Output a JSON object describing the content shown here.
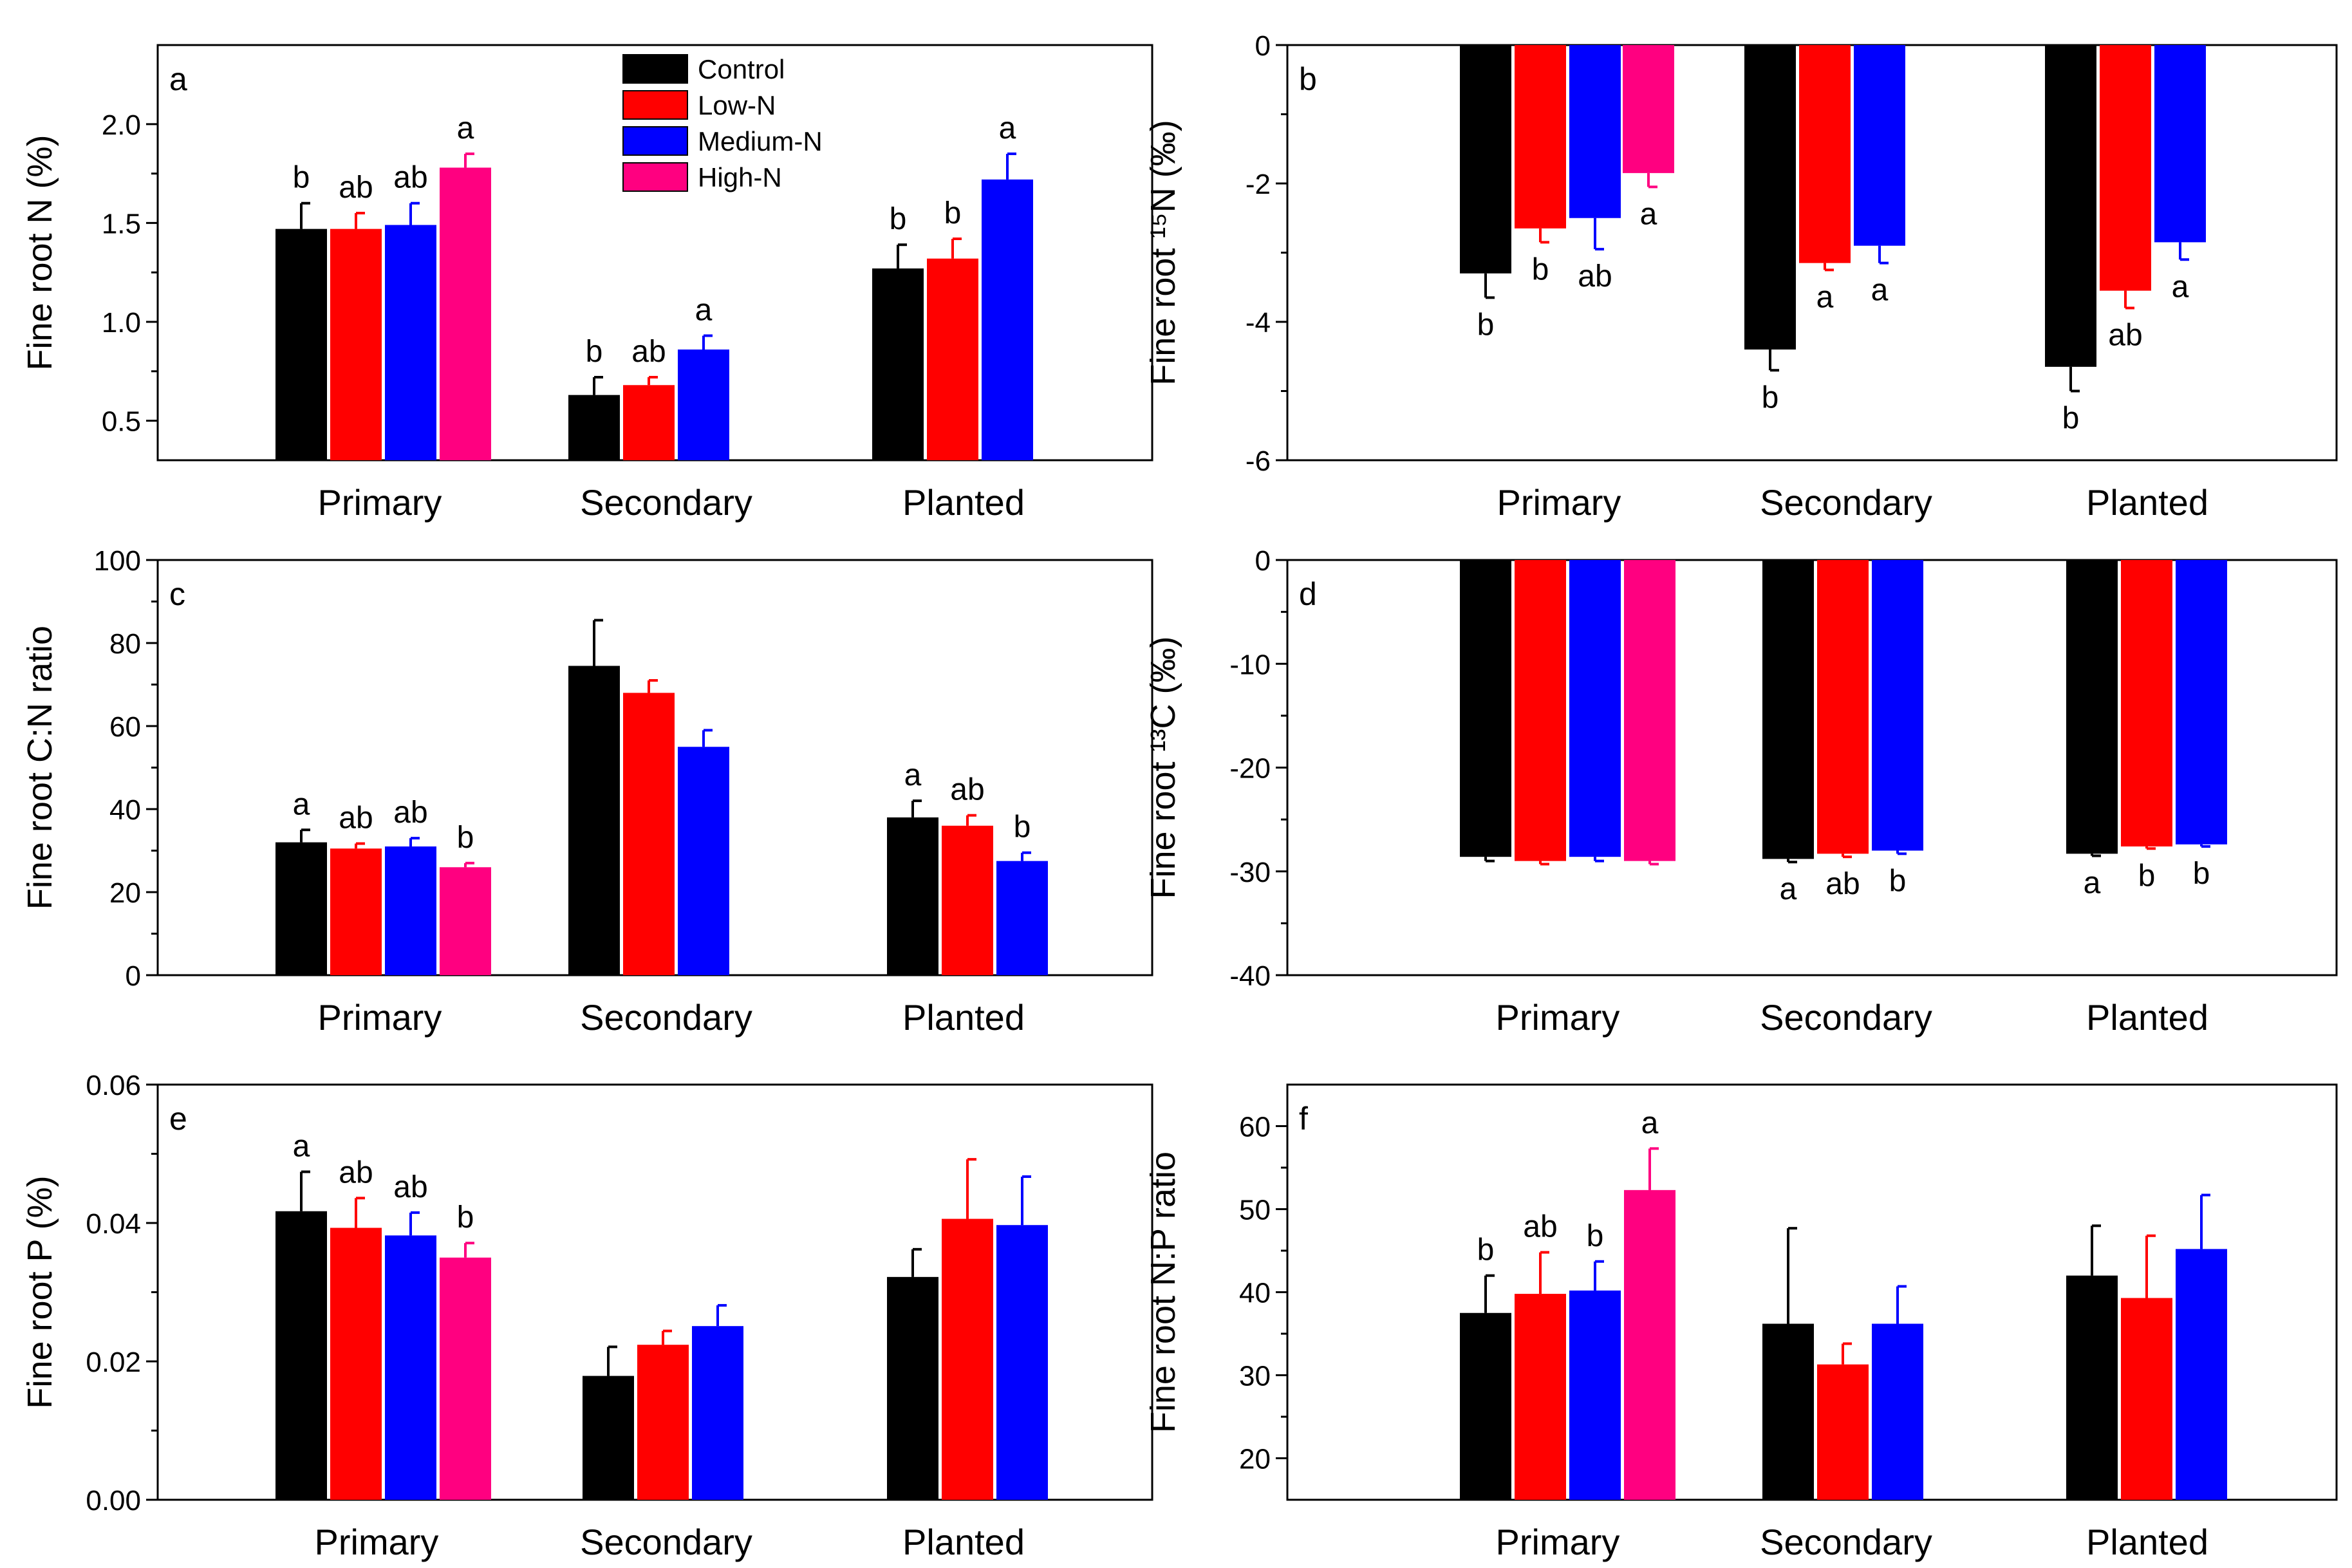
{
  "legend": [
    {
      "name": "Control",
      "color": "#000000"
    },
    {
      "name": "Low-N",
      "color": "#ff0000"
    },
    {
      "name": "Medium-N",
      "color": "#0000ff"
    },
    {
      "name": "High-N",
      "color": "#ff0080"
    }
  ],
  "chart_data": [
    {
      "panel": "a",
      "type": "bar",
      "ylabel": "Fine root N (%)",
      "ylim": [
        0.3,
        2.4
      ],
      "yticks": [
        0.5,
        1.0,
        1.5,
        2.0
      ],
      "ytick_labels": [
        "0.5",
        "1.0",
        "1.5",
        "2.0"
      ],
      "categories": [
        "Primary",
        "Secondary",
        "Planted"
      ],
      "series": [
        {
          "name": "Control",
          "values": [
            1.47,
            0.63,
            1.27
          ],
          "errors": [
            0.13,
            0.09,
            0.12
          ],
          "letters": [
            "b",
            "b",
            "b"
          ]
        },
        {
          "name": "Low-N",
          "values": [
            1.47,
            0.68,
            1.32
          ],
          "errors": [
            0.08,
            0.04,
            0.1
          ],
          "letters": [
            "ab",
            "ab",
            "b"
          ]
        },
        {
          "name": "Medium-N",
          "values": [
            1.49,
            0.86,
            1.72
          ],
          "errors": [
            0.11,
            0.07,
            0.13
          ],
          "letters": [
            "ab",
            "a",
            "a"
          ]
        },
        {
          "name": "High-N",
          "values": [
            1.78,
            null,
            null
          ],
          "errors": [
            0.07,
            null,
            null
          ],
          "letters": [
            "a",
            "",
            ""
          ]
        }
      ]
    },
    {
      "panel": "b",
      "type": "bar",
      "ylabel": "Fine root ¹⁵N (‰)",
      "ylim": [
        -6,
        0
      ],
      "yticks": [
        0,
        -2,
        -4,
        -6
      ],
      "ytick_labels": [
        "0",
        "-2",
        "-4",
        "-6"
      ],
      "categories": [
        "Primary",
        "Secondary",
        "Planted"
      ],
      "series": [
        {
          "name": "Control",
          "values": [
            -3.3,
            -4.4,
            -4.65
          ],
          "errors": [
            0.35,
            0.3,
            0.35
          ],
          "letters": [
            "b",
            "b",
            "b"
          ]
        },
        {
          "name": "Low-N",
          "values": [
            -2.65,
            -3.15,
            -3.55
          ],
          "errors": [
            0.2,
            0.1,
            0.25
          ],
          "letters": [
            "b",
            "a",
            "ab"
          ]
        },
        {
          "name": "Medium-N",
          "values": [
            -2.5,
            -2.9,
            -2.85
          ],
          "errors": [
            0.45,
            0.25,
            0.25
          ],
          "letters": [
            "ab",
            "a",
            "a"
          ]
        },
        {
          "name": "High-N",
          "values": [
            -1.85,
            null,
            null
          ],
          "errors": [
            0.2,
            null,
            null
          ],
          "letters": [
            "a",
            "",
            ""
          ]
        }
      ]
    },
    {
      "panel": "c",
      "type": "bar",
      "ylabel": "Fine root C:N ratio",
      "ylim": [
        0,
        100
      ],
      "yticks": [
        0,
        20,
        40,
        60,
        80,
        100
      ],
      "ytick_labels": [
        "0",
        "20",
        "40",
        "60",
        "80",
        "100"
      ],
      "categories": [
        "Primary",
        "Secondary",
        "Planted"
      ],
      "series": [
        {
          "name": "Control",
          "values": [
            32,
            74.5,
            38
          ],
          "errors": [
            3,
            11,
            4
          ],
          "letters": [
            "a",
            "",
            "a"
          ]
        },
        {
          "name": "Low-N",
          "values": [
            30.5,
            68,
            36
          ],
          "errors": [
            1.2,
            3,
            2.5
          ],
          "letters": [
            "ab",
            "",
            "ab"
          ]
        },
        {
          "name": "Medium-N",
          "values": [
            31,
            55,
            27.5
          ],
          "errors": [
            2,
            4,
            2
          ],
          "letters": [
            "ab",
            "",
            "b"
          ]
        },
        {
          "name": "High-N",
          "values": [
            26,
            null,
            null
          ],
          "errors": [
            1,
            null,
            null
          ],
          "letters": [
            "b",
            "",
            ""
          ]
        }
      ]
    },
    {
      "panel": "d",
      "type": "bar",
      "ylabel": "Fine root ¹³C (‰)",
      "ylim": [
        -40,
        0
      ],
      "yticks": [
        0,
        -10,
        -20,
        -30,
        -40
      ],
      "ytick_labels": [
        "0",
        "-10",
        "-20",
        "-30",
        "-40"
      ],
      "categories": [
        "Primary",
        "Secondary",
        "Planted"
      ],
      "series": [
        {
          "name": "Control",
          "values": [
            -28.6,
            -28.8,
            -28.3
          ],
          "errors": [
            0.4,
            0.3,
            0.2
          ],
          "letters": [
            "",
            "a",
            "a"
          ]
        },
        {
          "name": "Low-N",
          "values": [
            -29.0,
            -28.3,
            -27.6
          ],
          "errors": [
            0.3,
            0.3,
            0.2
          ],
          "letters": [
            "",
            "ab",
            "b"
          ]
        },
        {
          "name": "Medium-N",
          "values": [
            -28.6,
            -28.0,
            -27.4
          ],
          "errors": [
            0.4,
            0.3,
            0.2
          ],
          "letters": [
            "",
            "b",
            "b"
          ]
        },
        {
          "name": "High-N",
          "values": [
            -29.0,
            null,
            null
          ],
          "errors": [
            0.3,
            null,
            null
          ],
          "letters": [
            "",
            "",
            ""
          ]
        }
      ]
    },
    {
      "panel": "e",
      "type": "bar",
      "ylabel": "Fine root P (%)",
      "ylim": [
        0,
        0.06
      ],
      "yticks": [
        0,
        0.02,
        0.04,
        0.06
      ],
      "ytick_labels": [
        "0.00",
        "0.02",
        "0.04",
        "0.06"
      ],
      "categories": [
        "Primary",
        "Secondary",
        "Planted"
      ],
      "series": [
        {
          "name": "Control",
          "values": [
            0.0417,
            0.0179,
            0.0322
          ],
          "errors": [
            0.0057,
            0.0042,
            0.004
          ],
          "letters": [
            "a",
            "",
            ""
          ]
        },
        {
          "name": "Low-N",
          "values": [
            0.0393,
            0.0224,
            0.0406
          ],
          "errors": [
            0.0043,
            0.002,
            0.0086
          ],
          "letters": [
            "ab",
            "",
            ""
          ]
        },
        {
          "name": "Medium-N",
          "values": [
            0.0382,
            0.0251,
            0.0397
          ],
          "errors": [
            0.0033,
            0.003,
            0.007
          ],
          "letters": [
            "ab",
            "",
            ""
          ]
        },
        {
          "name": "High-N",
          "values": [
            0.035,
            null,
            null
          ],
          "errors": [
            0.0021,
            null,
            null
          ],
          "letters": [
            "b",
            "",
            ""
          ]
        }
      ]
    },
    {
      "panel": "f",
      "type": "bar",
      "ylabel": "Fine root N:P ratio",
      "ylim": [
        15,
        65
      ],
      "yticks": [
        20,
        30,
        40,
        50,
        60
      ],
      "ytick_labels": [
        "20",
        "30",
        "40",
        "50",
        "60"
      ],
      "categories": [
        "Primary",
        "Secondary",
        "Planted"
      ],
      "series": [
        {
          "name": "Control",
          "values": [
            37.5,
            36.2,
            42
          ],
          "errors": [
            4.5,
            11.5,
            6
          ],
          "letters": [
            "b",
            "",
            ""
          ]
        },
        {
          "name": "Low-N",
          "values": [
            39.8,
            31.3,
            39.3
          ],
          "errors": [
            5,
            2.5,
            7.5
          ],
          "letters": [
            "ab",
            "",
            ""
          ]
        },
        {
          "name": "Medium-N",
          "values": [
            40.2,
            36.2,
            45.2
          ],
          "errors": [
            3.5,
            4.5,
            6.5
          ],
          "letters": [
            "b",
            "",
            ""
          ]
        },
        {
          "name": "High-N",
          "values": [
            52.3,
            null,
            null
          ],
          "errors": [
            5,
            null,
            null
          ],
          "letters": [
            "a",
            "",
            ""
          ]
        }
      ]
    }
  ]
}
